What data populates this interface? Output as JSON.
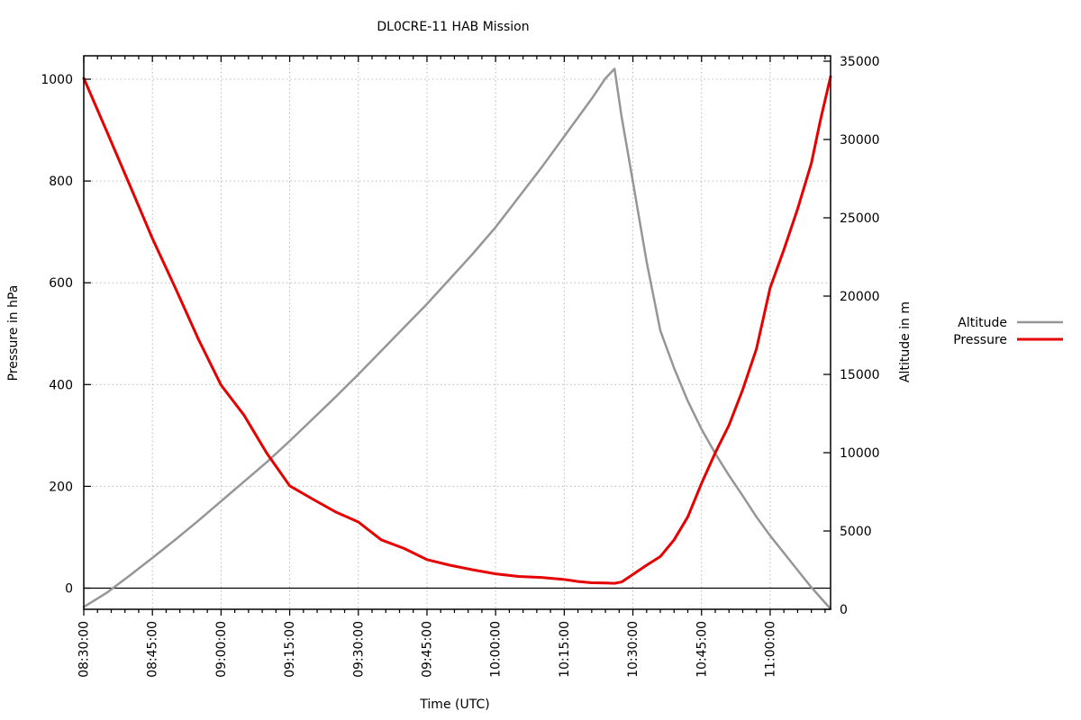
{
  "chart_data": {
    "type": "line",
    "title": "DL0CRE-11 HAB Mission",
    "xlabel": "Time (UTC)",
    "grid": "dotted",
    "grid_color": "#b8b8b8",
    "background": "#ffffff",
    "x_axis": {
      "unit": "minutes after 08:30:00 UTC",
      "range_minutes": [
        0,
        163.2
      ],
      "major_tick_minutes": [
        0,
        15,
        30,
        45,
        60,
        75,
        90,
        105,
        120,
        135,
        150
      ],
      "major_tick_labels": [
        "08:30:00",
        "08:45:00",
        "09:00:00",
        "09:15:00",
        "09:30:00",
        "09:45:00",
        "10:00:00",
        "10:15:00",
        "10:30:00",
        "10:45:00",
        "11:00:00"
      ],
      "minor_tick_interval_minutes": 3,
      "tick_label_rotation_deg": -90
    },
    "pressure_axis": {
      "label": "Pressure in hPa",
      "side": "left",
      "range": [
        -41.6,
        1046.0
      ],
      "major_ticks": [
        0,
        200,
        400,
        600,
        800,
        1000
      ],
      "zero_line": 0
    },
    "altitude_axis": {
      "label": "Altitude in m",
      "side": "right",
      "range": [
        0,
        35345
      ],
      "major_ticks": [
        0,
        5000,
        10000,
        15000,
        20000,
        25000,
        30000,
        35000
      ]
    },
    "legend": {
      "position": "outside-right-center"
    },
    "x_minutes": [
      0,
      5,
      10,
      15,
      20,
      25,
      30,
      35,
      40,
      45,
      50,
      55,
      60,
      65,
      70,
      75,
      80,
      85,
      90,
      95,
      100,
      105,
      108,
      111,
      114,
      116,
      117.5,
      120,
      123,
      126,
      129,
      132,
      135,
      138,
      141,
      144,
      147,
      150,
      153,
      156,
      159,
      161,
      163.2
    ],
    "series": [
      {
        "name": "Altitude",
        "axis": "altitude",
        "color": "#969696",
        "line_width": 2.5,
        "values": [
          150,
          1050,
          2150,
          3280,
          4450,
          5650,
          6900,
          8150,
          9400,
          10750,
          12150,
          13550,
          15000,
          16500,
          18000,
          19500,
          21100,
          22700,
          24400,
          26300,
          28200,
          30200,
          31400,
          32600,
          33900,
          34520,
          31500,
          27300,
          22200,
          17800,
          15400,
          13300,
          11500,
          9950,
          8550,
          7250,
          5900,
          4700,
          3600,
          2500,
          1400,
          750,
          30
        ]
      },
      {
        "name": "Pressure",
        "axis": "pressure",
        "color": "#e60000",
        "line_width": 3,
        "values": [
          1002,
          898,
          793,
          687,
          590,
          490,
          399,
          340,
          265,
          201,
          175,
          150,
          130,
          95,
          78,
          56,
          45,
          36,
          28,
          23,
          21,
          17,
          13,
          10.5,
          10,
          9.5,
          12,
          27,
          45,
          62,
          95,
          140,
          206,
          266,
          320,
          390,
          470,
          590,
          665,
          745,
          835,
          920,
          1005
        ]
      }
    ],
    "annotations": {
      "burst_time": "10:26",
      "burst_altitude_m": 34520,
      "min_pressure_hPa": 9.5
    }
  }
}
